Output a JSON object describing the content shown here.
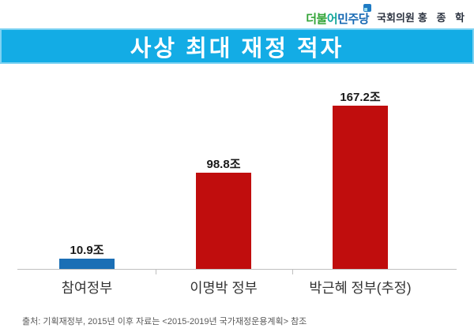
{
  "header": {
    "party_logo": {
      "parts": [
        {
          "text": "더불",
          "color": "#33A437"
        },
        {
          "text": "어",
          "color": "#14A79B"
        },
        {
          "text": "민주당",
          "color": "#1568B3"
        }
      ],
      "symbol_color": "#1E7BC4",
      "symbol_inner_color": "#9FE0EF"
    },
    "member_title": "국회의원",
    "member_name": "홍 종 학"
  },
  "banner": {
    "title": "사상 최대 재정 적자",
    "bg_color": "#13ACE5",
    "text_color": "#FFFFFF"
  },
  "chart_data": {
    "type": "bar",
    "title": "사상 최대 재정 적자",
    "categories": [
      "참여정부",
      "이명박 정부",
      "박근혜 정부(추정)"
    ],
    "values": [
      10.9,
      98.8,
      167.2
    ],
    "value_labels": [
      "10.9조",
      "98.8조",
      "167.2조"
    ],
    "unit": "조",
    "bar_colors": [
      "#1B6FB5",
      "#C00D0D",
      "#C00D0D"
    ],
    "xlabel": "",
    "ylabel": "",
    "ylim": [
      0,
      175
    ],
    "grid": false,
    "legend": false,
    "axis_color": "#BFBFBF",
    "value_label_color": "#1A1A1A",
    "category_label_color": "#333333"
  },
  "footer": {
    "source": "출처: 기획재정부, 2015년 이후 자료는 <2015-2019년 국가재정운용계획> 참조"
  }
}
